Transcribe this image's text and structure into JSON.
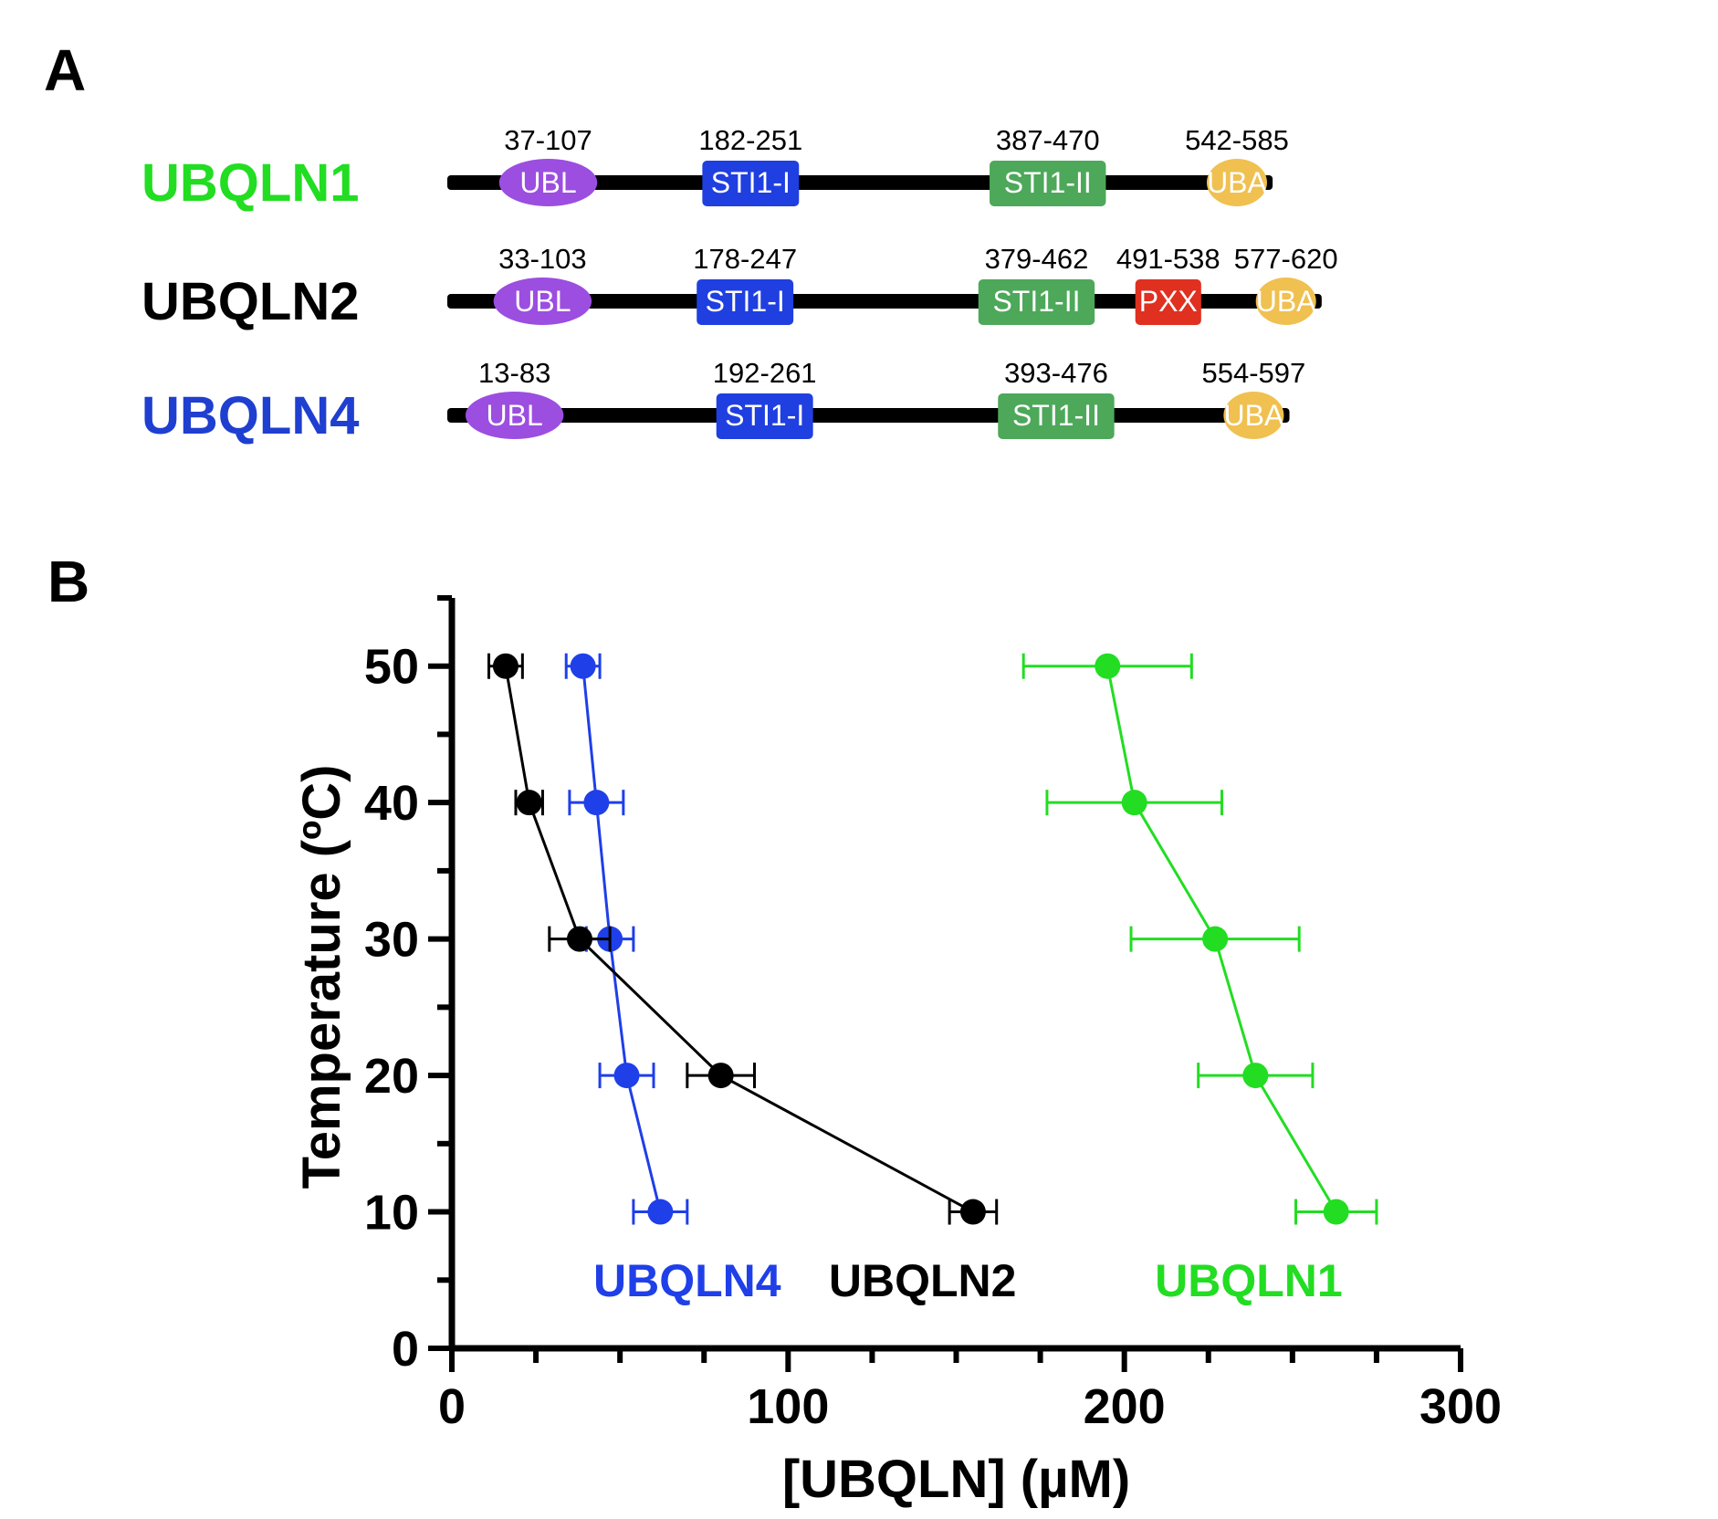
{
  "panel_a": {
    "letter": "A",
    "proteins": [
      {
        "name": "UBQLN1",
        "color": "#22dd22",
        "length": 589,
        "domains": [
          {
            "label": "UBL",
            "range": "37-107",
            "start": 37,
            "end": 107,
            "shape": "ellipse",
            "color": "#9b4ee0"
          },
          {
            "label": "STI1-I",
            "range": "182-251",
            "start": 182,
            "end": 251,
            "shape": "rect",
            "color": "#1f3fe0"
          },
          {
            "label": "STI1-II",
            "range": "387-470",
            "start": 387,
            "end": 470,
            "shape": "rect",
            "color": "#4da85a"
          },
          {
            "label": "UBA",
            "range": "542-585",
            "start": 542,
            "end": 585,
            "shape": "ellipse",
            "color": "#f0c050"
          }
        ]
      },
      {
        "name": "UBQLN2",
        "color": "#000000",
        "length": 624,
        "domains": [
          {
            "label": "UBL",
            "range": "33-103",
            "start": 33,
            "end": 103,
            "shape": "ellipse",
            "color": "#9b4ee0"
          },
          {
            "label": "STI1-I",
            "range": "178-247",
            "start": 178,
            "end": 247,
            "shape": "rect",
            "color": "#1f3fe0"
          },
          {
            "label": "STI1-II",
            "range": "379-462",
            "start": 379,
            "end": 462,
            "shape": "rect",
            "color": "#4da85a"
          },
          {
            "label": "PXX",
            "range": "491-538",
            "start": 491,
            "end": 538,
            "shape": "rect",
            "color": "#e03020"
          },
          {
            "label": "UBA",
            "range": "577-620",
            "start": 577,
            "end": 620,
            "shape": "ellipse",
            "color": "#f0c050"
          }
        ]
      },
      {
        "name": "UBQLN4",
        "color": "#1f3fd0",
        "length": 601,
        "domains": [
          {
            "label": "UBL",
            "range": "13-83",
            "start": 13,
            "end": 83,
            "shape": "ellipse",
            "color": "#9b4ee0"
          },
          {
            "label": "STI1-I",
            "range": "192-261",
            "start": 192,
            "end": 261,
            "shape": "rect",
            "color": "#1f3fe0"
          },
          {
            "label": "STI1-II",
            "range": "393-476",
            "start": 393,
            "end": 476,
            "shape": "rect",
            "color": "#4da85a"
          },
          {
            "label": "UBA",
            "range": "554-597",
            "start": 554,
            "end": 597,
            "shape": "ellipse",
            "color": "#f0c050"
          }
        ]
      }
    ]
  },
  "panel_b": {
    "letter": "B"
  },
  "chart_data": {
    "type": "scatter",
    "title": "",
    "xlabel": "[UBQLN] (µM)",
    "ylabel": "Temperature (ºC)",
    "xlim": [
      0,
      300
    ],
    "ylim": [
      0,
      55
    ],
    "xticks": [
      0,
      100,
      200,
      300
    ],
    "yticks": [
      0,
      10,
      20,
      30,
      40,
      50
    ],
    "grid": false,
    "series": [
      {
        "name": "UBQLN4",
        "color": "#1f3fe8",
        "points": [
          {
            "x": 62,
            "y": 10,
            "err": 8
          },
          {
            "x": 52,
            "y": 20,
            "err": 8
          },
          {
            "x": 47,
            "y": 30,
            "err": 7
          },
          {
            "x": 43,
            "y": 40,
            "err": 8
          },
          {
            "x": 39,
            "y": 50,
            "err": 5
          }
        ]
      },
      {
        "name": "UBQLN2",
        "color": "#000000",
        "points": [
          {
            "x": 155,
            "y": 10,
            "err": 7
          },
          {
            "x": 80,
            "y": 20,
            "err": 10
          },
          {
            "x": 38,
            "y": 30,
            "err": 9
          },
          {
            "x": 23,
            "y": 40,
            "err": 4
          },
          {
            "x": 16,
            "y": 50,
            "err": 5
          }
        ]
      },
      {
        "name": "UBQLN1",
        "color": "#22dd22",
        "points": [
          {
            "x": 263,
            "y": 10,
            "err": 12
          },
          {
            "x": 239,
            "y": 20,
            "err": 17
          },
          {
            "x": 227,
            "y": 30,
            "err": 25
          },
          {
            "x": 203,
            "y": 40,
            "err": 26
          },
          {
            "x": 195,
            "y": 50,
            "err": 25
          }
        ]
      }
    ]
  }
}
